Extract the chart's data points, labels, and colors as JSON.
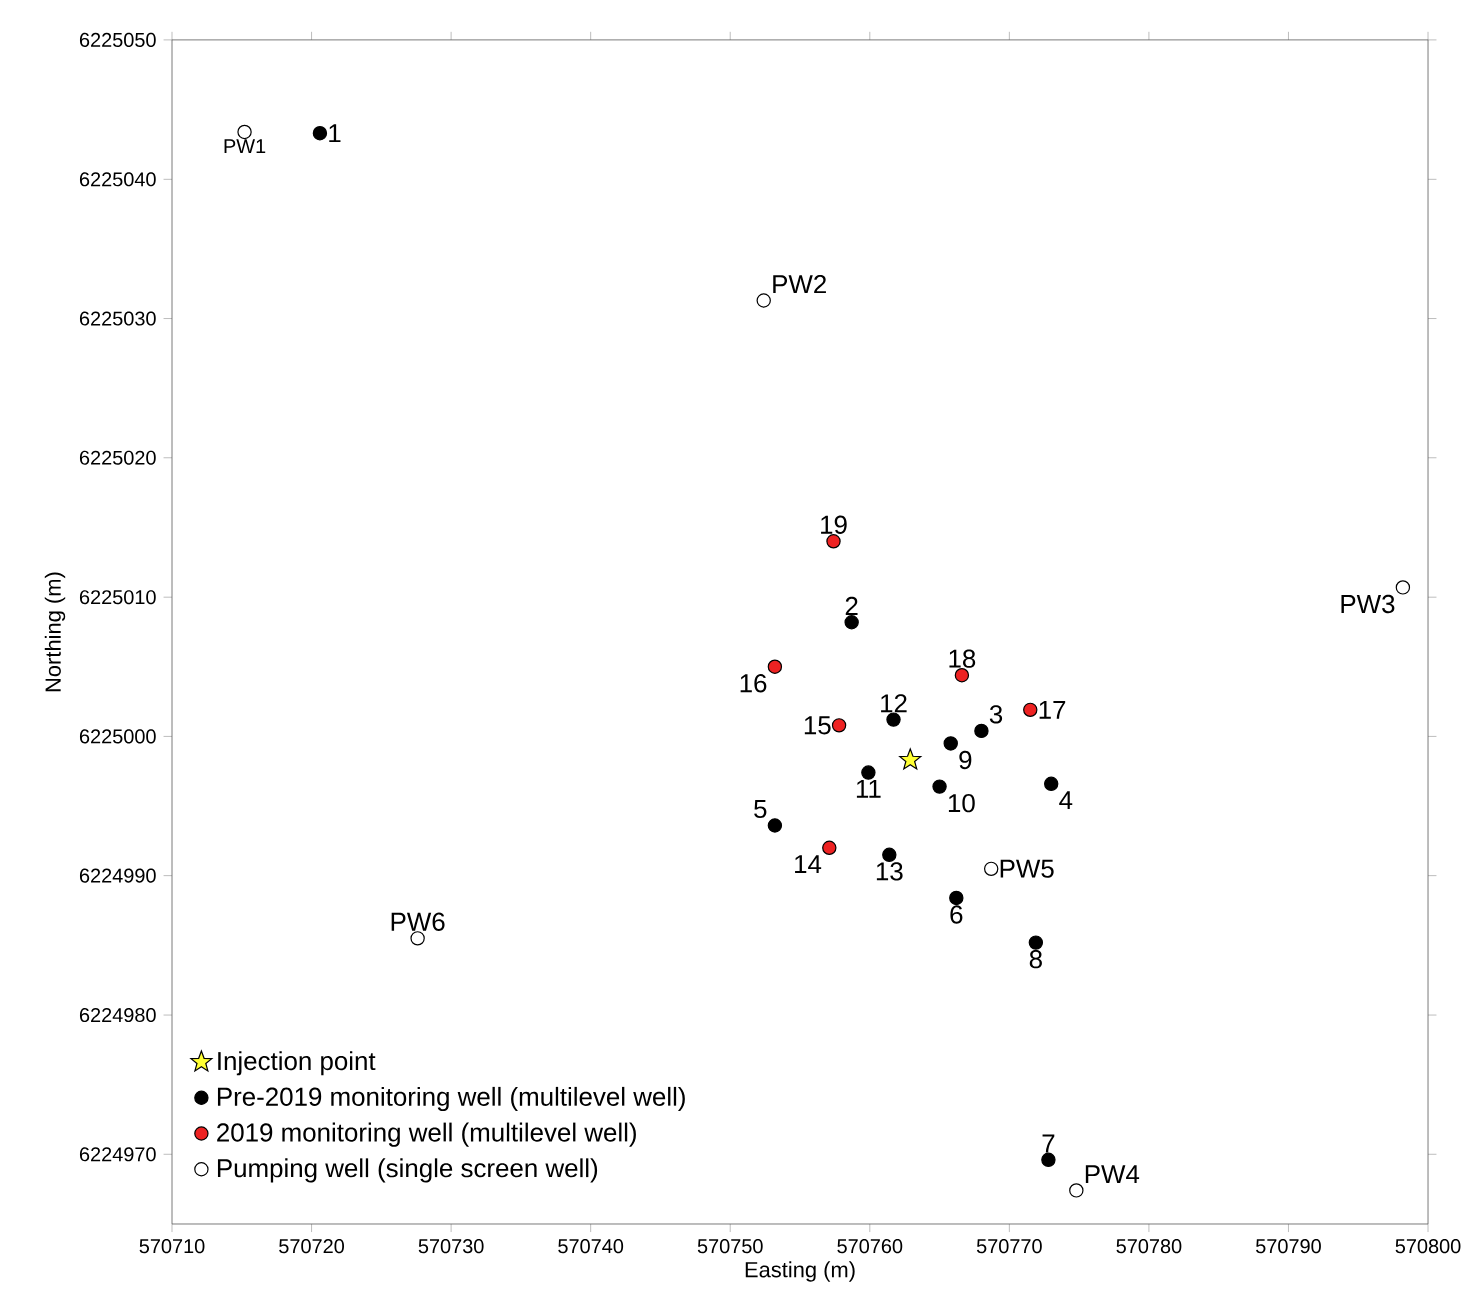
{
  "chart_data": {
    "type": "scatter",
    "xlabel": "Easting (m)",
    "ylabel": "Northing (m)",
    "xlim": [
      570710,
      570800
    ],
    "ylim": [
      6224965,
      6225050
    ],
    "xticks": [
      570710,
      570720,
      570730,
      570740,
      570750,
      570760,
      570770,
      570780,
      570790,
      570800
    ],
    "yticks": [
      6224970,
      6224980,
      6224990,
      6225000,
      6225010,
      6225020,
      6225030,
      6225040,
      6225050
    ],
    "grid": false,
    "legend": "bottom left",
    "series": [
      {
        "name": "Injection point",
        "color": "#ffff33",
        "marker": "star",
        "x": [
          570762.9
        ],
        "values": [
          6224998.3
        ]
      },
      {
        "name": "Pre-2019 monitoring well (multilevel well)",
        "color": "#000000",
        "marker": "circle",
        "x": [
          570720.6,
          570758.7,
          570768.0,
          570773.0,
          570753.2,
          570766.2,
          570772.8,
          570771.9,
          570765.8,
          570765.0,
          570759.9,
          570761.7,
          570761.4
        ],
        "values": [
          6225043.3,
          6225008.2,
          6225000.4,
          6224996.6,
          6224993.6,
          6224988.4,
          6224969.6,
          6224985.2,
          6224999.5,
          6224996.4,
          6224997.4,
          6225001.2,
          6224991.5
        ]
      },
      {
        "name": "2019 monitoring well (multilevel well)",
        "color": "#ee2222",
        "marker": "circle",
        "x": [
          570757.1,
          570757.8,
          570753.2,
          570771.5,
          570766.6,
          570757.4
        ],
        "values": [
          6224992.0,
          6225000.8,
          6225005.0,
          6225001.9,
          6225004.4,
          6225014.0
        ]
      },
      {
        "name": "Pumping well (single screen well)",
        "color": "#ffffff",
        "marker": "circle",
        "x": [
          570715.2,
          570752.4,
          570798.2,
          570774.8,
          570768.7,
          570727.6
        ],
        "values": [
          6225043.4,
          6225031.3,
          6225010.7,
          6224967.4,
          6224990.5,
          6224985.5
        ]
      }
    ],
    "annotations": [
      {
        "text": "1",
        "x": 570720.6,
        "y": 6225043.3
      },
      {
        "text": "PW1",
        "x": 570715.2,
        "y": 6225043.4
      },
      {
        "text": "PW2",
        "x": 570752.4,
        "y": 6225031.3
      },
      {
        "text": "19",
        "x": 570757.4,
        "y": 6225014.0
      },
      {
        "text": "2",
        "x": 570758.7,
        "y": 6225008.2
      },
      {
        "text": "16",
        "x": 570753.2,
        "y": 6225005.0
      },
      {
        "text": "15",
        "x": 570757.8,
        "y": 6225000.8
      },
      {
        "text": "12",
        "x": 570761.7,
        "y": 6225001.2
      },
      {
        "text": "18",
        "x": 570766.6,
        "y": 6225004.4
      },
      {
        "text": "3",
        "x": 570768.0,
        "y": 6225000.4
      },
      {
        "text": "17",
        "x": 570771.5,
        "y": 6225001.9
      },
      {
        "text": "9",
        "x": 570765.8,
        "y": 6224999.5
      },
      {
        "text": "11",
        "x": 570759.9,
        "y": 6224997.4
      },
      {
        "text": "10",
        "x": 570765.0,
        "y": 6224996.4
      },
      {
        "text": "4",
        "x": 570773.0,
        "y": 6224996.6
      },
      {
        "text": "5",
        "x": 570753.2,
        "y": 6224993.6
      },
      {
        "text": "14",
        "x": 570757.1,
        "y": 6224992.0
      },
      {
        "text": "13",
        "x": 570761.4,
        "y": 6224991.5
      },
      {
        "text": "PW5",
        "x": 570768.7,
        "y": 6224990.5
      },
      {
        "text": "6",
        "x": 570766.2,
        "y": 6224988.4
      },
      {
        "text": "8",
        "x": 570771.9,
        "y": 6224985.2
      },
      {
        "text": "7",
        "x": 570772.8,
        "y": 6224969.6
      },
      {
        "text": "PW4",
        "x": 570774.8,
        "y": 6224967.4
      },
      {
        "text": "PW6",
        "x": 570727.6,
        "y": 6224985.5
      },
      {
        "text": "PW3",
        "x": 570798.2,
        "y": 6225010.7
      }
    ]
  }
}
